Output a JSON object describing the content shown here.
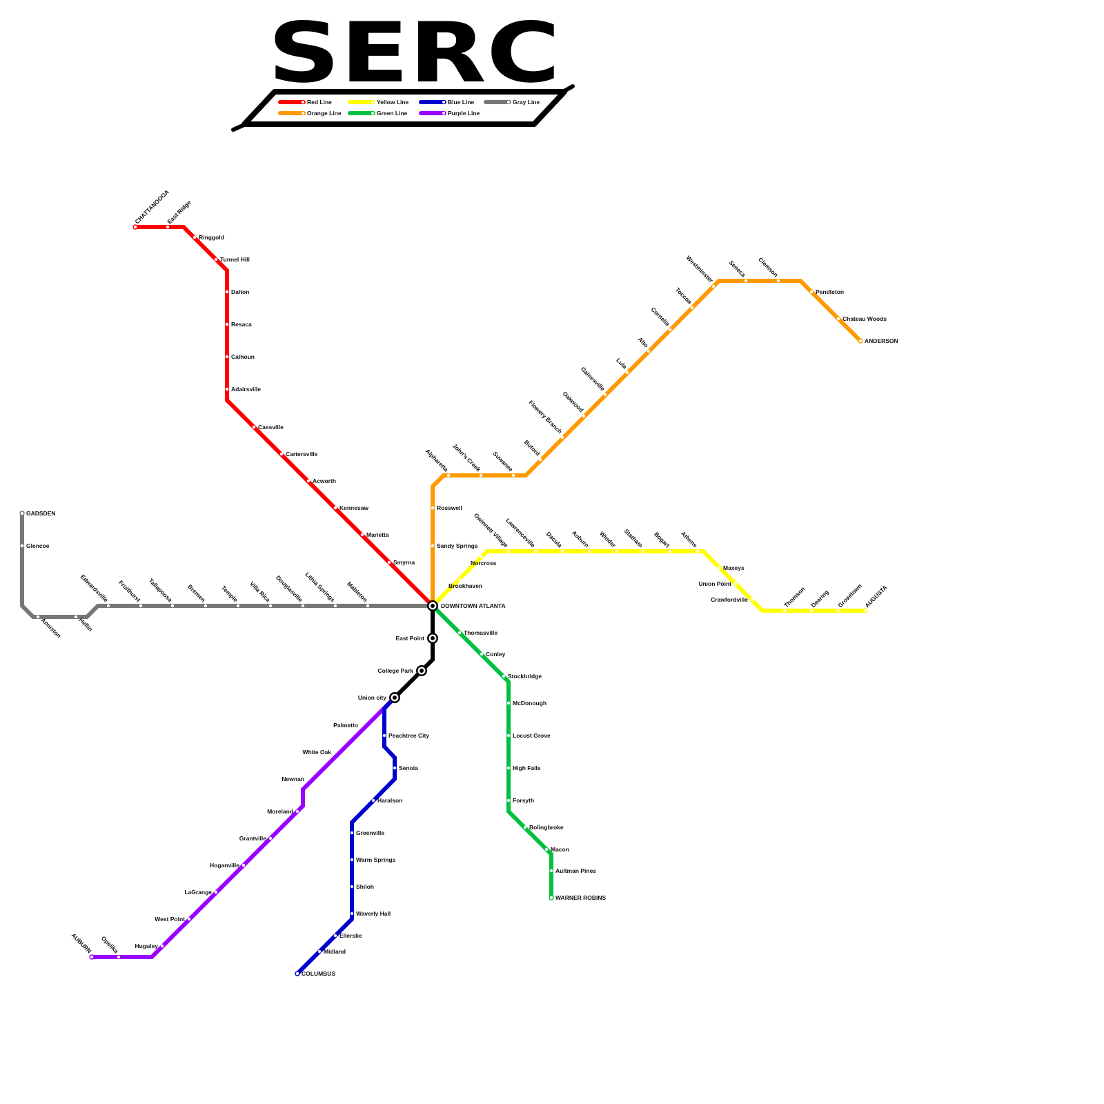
{
  "title": "SERC",
  "trunk": {
    "color": "#000000",
    "interchanges": [
      "DOWNTOWN ATLANTA",
      "East Point",
      "College Park",
      "Union city"
    ]
  },
  "lines": [
    {
      "name": "Red Line",
      "color": "#ff0000",
      "stations": [
        "CHATTANOOGA",
        "East Ridge",
        "Ringgold",
        "Tunnel Hill",
        "Dalton",
        "Resaca",
        "Calhoun",
        "Adairsville",
        "Cassville",
        "Cartersville",
        "Acworth",
        "Kennesaw",
        "Marietta",
        "Smyrna"
      ]
    },
    {
      "name": "Orange Line",
      "color": "#ff9900",
      "stations": [
        "Rosswell",
        "Sandy Springs",
        "Alpharetta",
        "John's Creek",
        "Suwanee",
        "Buford",
        "Flowery Branch",
        "Oakwood",
        "Gainesville",
        "Lula",
        "Alto",
        "Cornelia",
        "Toccoa",
        "Westminster",
        "Seneca",
        "Clemson",
        "Pendleton",
        "Chateau Woods",
        "ANDERSON"
      ]
    },
    {
      "name": "Yellow Line",
      "color": "#ffff00",
      "stations": [
        "Brookhaven",
        "Norcross",
        "Gwinnett Village",
        "Lawrenceville",
        "Dacula",
        "Auburn",
        "Winder",
        "Statham",
        "Bogart",
        "Athens",
        "Maxeys",
        "Union Point",
        "Crawfordville",
        "Thomson",
        "Dearing",
        "Grovetown",
        "AUGUSTA"
      ]
    },
    {
      "name": "Green Line",
      "color": "#00c040",
      "stations": [
        "Thomasville",
        "Conley",
        "Stockbridge",
        "McDonough",
        "Locust Grove",
        "High Falls",
        "Forsyth",
        "Bolingbroke",
        "Macon",
        "Aultman Pines",
        "WARNER ROBINS"
      ]
    },
    {
      "name": "Blue Line",
      "color": "#0000cc",
      "stations": [
        "Peachtree City",
        "Senoia",
        "Haralson",
        "Greenville",
        "Warm Springs",
        "Shiloh",
        "Waverly Hall",
        "Ellerslie",
        "Midland",
        "COLUMBUS"
      ]
    },
    {
      "name": "Purple Line",
      "color": "#9900ff",
      "stations": [
        "Palmetto",
        "White Oak",
        "Newnan",
        "Moreland",
        "Grantville",
        "Hoganville",
        "LaGrange",
        "West Point",
        "Huguley",
        "Opelika",
        "AUBURN"
      ]
    },
    {
      "name": "Gray Line",
      "color": "#777777",
      "stations": [
        "GADSDEN",
        "Glencoe",
        "Anniston",
        "Heflin",
        "Edwardsville",
        "Fruithurst",
        "Tallapoosa",
        "Bremen",
        "Temple",
        "Villa Rica",
        "Douglasville",
        "Lithia Springs",
        "Mableton"
      ]
    }
  ],
  "legend_order": [
    0,
    2,
    4,
    6,
    1,
    3,
    5
  ]
}
